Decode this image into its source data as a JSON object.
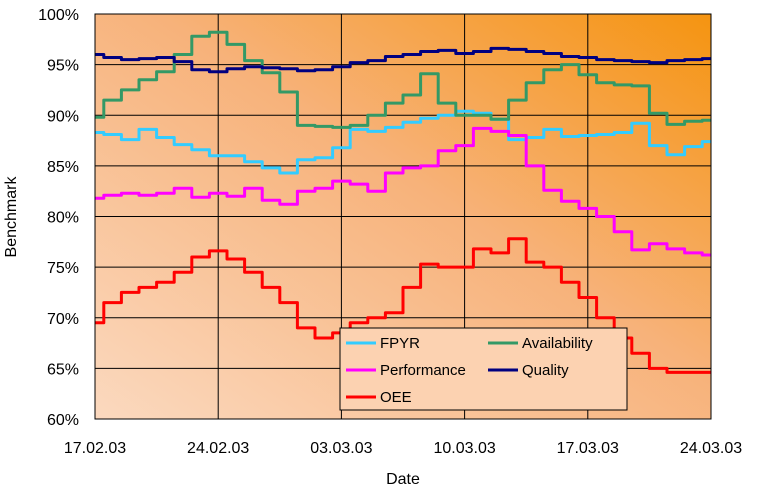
{
  "chart_data": {
    "type": "line",
    "xlabel": "Date",
    "ylabel": "Benchmark",
    "ylim": [
      60,
      100
    ],
    "y_ticks": [
      "60%",
      "65%",
      "70%",
      "75%",
      "80%",
      "85%",
      "90%",
      "95%",
      "100%"
    ],
    "x_ticks": [
      "17.02.03",
      "24.02.03",
      "03.03.03",
      "10.03.03",
      "17.03.03",
      "24.03.03"
    ],
    "x_range_days": [
      0,
      35
    ],
    "grid": "vertical and horizontal",
    "legend_placement": "bottom-center",
    "background": "gradient light peach to orange",
    "series": [
      {
        "name": "FPYR",
        "color": "#33ccff",
        "x": [
          0,
          1,
          2,
          3,
          4,
          5,
          6,
          7,
          8,
          9,
          10,
          11,
          12,
          13,
          14,
          15,
          16,
          17,
          18,
          19,
          20,
          21,
          22,
          23,
          24,
          25,
          26,
          27,
          28,
          29,
          30,
          31,
          32,
          33,
          34,
          35
        ],
        "values": [
          88.3,
          88.1,
          87.6,
          88.6,
          87.8,
          87.1,
          86.6,
          86.0,
          86.0,
          85.4,
          84.8,
          84.3,
          85.6,
          85.8,
          86.8,
          88.6,
          88.4,
          88.8,
          89.3,
          89.7,
          90.0,
          90.4,
          90.2,
          89.6,
          87.6,
          87.8,
          88.6,
          87.9,
          88.0,
          88.1,
          88.3,
          89.2,
          87.0,
          86.1,
          86.9,
          87.4
        ]
      },
      {
        "name": "Availability",
        "color": "#339966",
        "x": [
          0,
          1,
          2,
          3,
          4,
          5,
          6,
          7,
          8,
          9,
          10,
          11,
          12,
          13,
          14,
          15,
          16,
          17,
          18,
          19,
          20,
          21,
          22,
          23,
          24,
          25,
          26,
          27,
          28,
          29,
          30,
          31,
          32,
          33,
          34,
          35
        ],
        "values": [
          89.8,
          91.5,
          92.5,
          93.5,
          94.3,
          96.0,
          97.8,
          98.2,
          97.0,
          95.4,
          94.2,
          92.3,
          89.0,
          88.9,
          88.8,
          89.0,
          90.0,
          91.2,
          92.0,
          94.1,
          91.2,
          90.0,
          90.0,
          89.6,
          91.5,
          93.2,
          94.5,
          95.0,
          94.0,
          93.2,
          93.0,
          92.9,
          90.2,
          89.1,
          89.4,
          89.5
        ]
      },
      {
        "name": "Performance",
        "color": "#ff00ff",
        "x": [
          0,
          1,
          2,
          3,
          4,
          5,
          6,
          7,
          8,
          9,
          10,
          11,
          12,
          13,
          14,
          15,
          16,
          17,
          18,
          19,
          20,
          21,
          22,
          23,
          24,
          25,
          26,
          27,
          28,
          29,
          30,
          31,
          32,
          33,
          34,
          35
        ],
        "values": [
          81.8,
          82.1,
          82.3,
          82.1,
          82.3,
          82.8,
          81.9,
          82.3,
          82.0,
          82.8,
          81.6,
          81.2,
          82.5,
          82.8,
          83.5,
          83.2,
          82.5,
          84.3,
          84.8,
          85.0,
          86.5,
          87.0,
          88.7,
          88.4,
          88.0,
          85.0,
          82.6,
          81.5,
          80.8,
          80.0,
          78.5,
          76.7,
          77.3,
          76.8,
          76.4,
          76.2
        ]
      },
      {
        "name": "Quality",
        "color": "#000080",
        "x": [
          0,
          1,
          2,
          3,
          4,
          5,
          6,
          7,
          8,
          9,
          10,
          11,
          12,
          13,
          14,
          15,
          16,
          17,
          18,
          19,
          20,
          21,
          22,
          23,
          24,
          25,
          26,
          27,
          28,
          29,
          30,
          31,
          32,
          33,
          34,
          35
        ],
        "values": [
          96.0,
          95.7,
          95.5,
          95.6,
          95.7,
          95.3,
          94.5,
          94.3,
          94.6,
          94.8,
          94.7,
          94.6,
          94.4,
          94.5,
          94.8,
          95.2,
          95.4,
          95.8,
          96.0,
          96.3,
          96.4,
          96.1,
          96.3,
          96.6,
          96.5,
          96.3,
          96.1,
          95.8,
          95.7,
          95.5,
          95.4,
          95.3,
          95.2,
          95.4,
          95.5,
          95.6
        ]
      },
      {
        "name": "OEE",
        "color": "#ff0000",
        "x": [
          0,
          1,
          2,
          3,
          4,
          5,
          6,
          7,
          8,
          9,
          10,
          11,
          12,
          13,
          14,
          15,
          16,
          17,
          18,
          19,
          20,
          21,
          22,
          23,
          24,
          25,
          26,
          27,
          28,
          29,
          30,
          31,
          32,
          33,
          34,
          35
        ],
        "values": [
          69.5,
          71.5,
          72.5,
          73.0,
          73.5,
          74.5,
          76.0,
          76.6,
          75.8,
          74.5,
          73.0,
          71.5,
          69.0,
          68.0,
          68.5,
          69.5,
          70.0,
          70.5,
          73.0,
          75.3,
          75.0,
          75.0,
          76.8,
          76.4,
          77.8,
          75.5,
          75.0,
          73.5,
          72.0,
          70.0,
          68.0,
          66.5,
          65.0,
          64.6,
          64.6,
          64.6
        ]
      }
    ]
  }
}
